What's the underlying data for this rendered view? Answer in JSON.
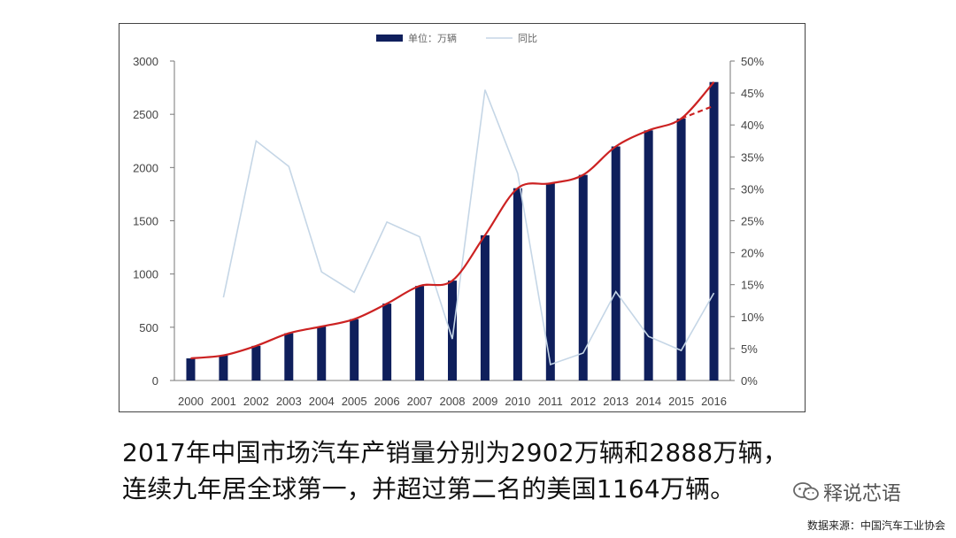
{
  "colors": {
    "bar": "#0f1f5c",
    "yoy_line": "#c5d6e6",
    "trend_line": "#cc2222",
    "axis": "#777777",
    "text": "#444444"
  },
  "caption": {
    "line1": "2017年中国市场汽车产销量分别为2902万辆和2888万辆，",
    "line2": "连续九年居全球第一，并超过第二名的美国1164万辆。"
  },
  "watermark": {
    "icon": "wechat-icon",
    "text": "释说芯语"
  },
  "source_note": "数据来源：中国汽车工业协会",
  "chart_data": {
    "type": "bar",
    "categories": [
      "2000",
      "2001",
      "2002",
      "2003",
      "2004",
      "2005",
      "2006",
      "2007",
      "2008",
      "2009",
      "2010",
      "2011",
      "2012",
      "2013",
      "2014",
      "2015",
      "2016"
    ],
    "series": [
      {
        "name": "单位：万辆",
        "type": "bar",
        "axis": "left",
        "values": [
          208,
          236,
          325,
          444,
          507,
          576,
          722,
          888,
          938,
          1364,
          1806,
          1851,
          1931,
          2198,
          2349,
          2460,
          2803
        ]
      },
      {
        "name": "同比",
        "type": "line",
        "axis": "right",
        "values": [
          null,
          13.0,
          37.5,
          33.5,
          17.0,
          13.8,
          24.8,
          22.5,
          6.5,
          45.5,
          32.4,
          2.5,
          4.3,
          13.9,
          6.9,
          4.7,
          13.7
        ]
      }
    ],
    "yleft": {
      "ylim": [
        0,
        3000
      ],
      "ticks": [
        "0",
        "500",
        "1000",
        "1500",
        "2000",
        "2500",
        "3000"
      ]
    },
    "yright": {
      "ylim": [
        0,
        50
      ],
      "ticks": [
        "0%",
        "5%",
        "10%",
        "15%",
        "20%",
        "25%",
        "30%",
        "35%",
        "40%",
        "45%",
        "50%"
      ]
    },
    "trend_line": {
      "values": [
        208,
        236,
        325,
        444,
        507,
        576,
        722,
        888,
        938,
        1364,
        1806,
        1851,
        1931,
        2198,
        2349,
        2460,
        2803
      ],
      "dashed_to": 2580
    },
    "legend_position": "top-center",
    "grid": false
  }
}
